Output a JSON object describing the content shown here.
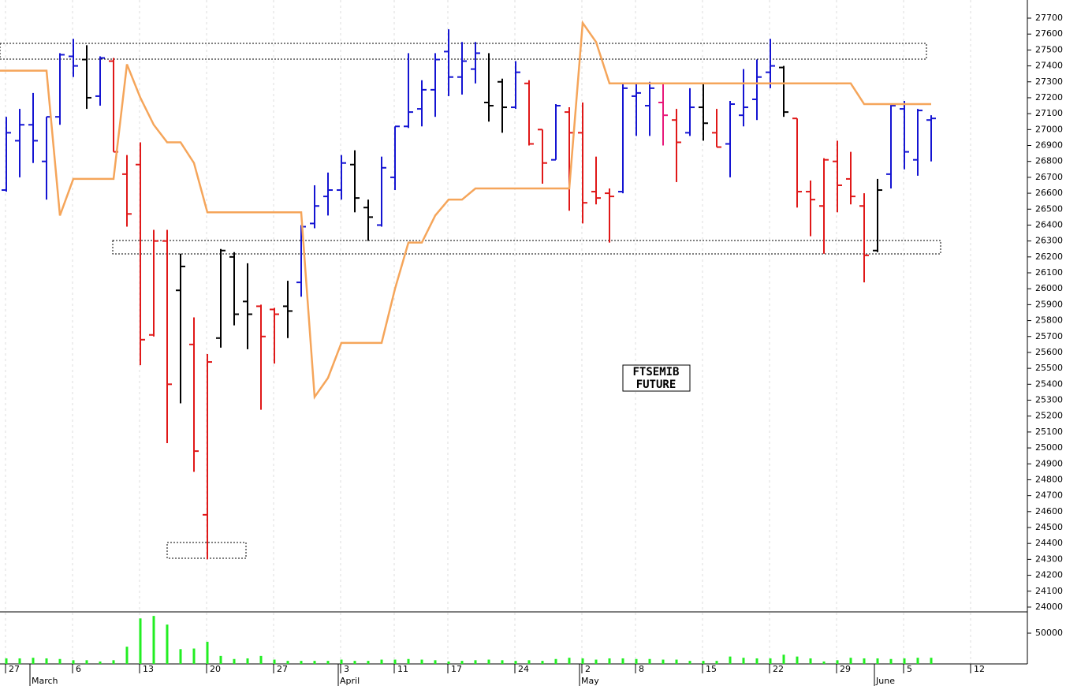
{
  "chart_data": {
    "type": "ohlc",
    "categories": [
      "27",
      null,
      null,
      null,
      null,
      "6",
      null,
      null,
      null,
      null,
      "13",
      null,
      null,
      null,
      null,
      "20",
      null,
      null,
      null,
      null,
      "27",
      null,
      null,
      null,
      null,
      "3",
      null,
      null,
      null,
      "11",
      null,
      null,
      null,
      "17",
      null,
      null,
      null,
      null,
      "24",
      null,
      null,
      null,
      null,
      "2",
      null,
      null,
      null,
      "8",
      null,
      null,
      null,
      null,
      "15",
      null,
      null,
      null,
      null,
      "22",
      null,
      null,
      null,
      null,
      "29",
      null,
      null,
      null,
      null,
      "5",
      null,
      null,
      null,
      null,
      "12",
      null
    ],
    "months": [
      null,
      null,
      "March",
      null,
      null,
      null,
      null,
      null,
      null,
      null,
      null,
      null,
      null,
      null,
      null,
      null,
      null,
      null,
      null,
      null,
      null,
      null,
      null,
      null,
      null,
      "April",
      null,
      null,
      null,
      null,
      null,
      null,
      null,
      null,
      null,
      null,
      null,
      null,
      null,
      null,
      null,
      null,
      null,
      "May",
      null,
      null,
      null,
      null,
      null,
      null,
      null,
      null,
      null,
      null,
      null,
      null,
      null,
      null,
      null,
      null,
      null,
      null,
      null,
      null,
      null,
      "June",
      null,
      null,
      null,
      null,
      null,
      null,
      null,
      null
    ],
    "open": [
      26620,
      26930,
      27030,
      26800,
      27080,
      27460,
      27440,
      27210,
      27430,
      26720,
      26780,
      25710,
      26300,
      25990,
      25650,
      24580,
      25690,
      26200,
      25920,
      25890,
      25870,
      25890,
      26040,
      26410,
      26580,
      26620,
      26780,
      26510,
      26400,
      26700,
      27020,
      27130,
      27250,
      27490,
      27330,
      27380,
      27170,
      27300,
      27140,
      27290,
      27000,
      26810,
      27110,
      26980,
      26610,
      26600,
      26610,
      27210,
      27150,
      27170,
      27060,
      26980,
      27140,
      26980,
      26910,
      27090,
      27190,
      27360,
      27390,
      27070,
      26610,
      26520,
      26800,
      26690,
      26520,
      26240,
      26720,
      27130,
      26810,
      27060,
      null,
      null,
      null,
      null
    ],
    "high": [
      27080,
      27130,
      27230,
      27080,
      27480,
      27570,
      27530,
      27460,
      27450,
      26840,
      26920,
      26370,
      26370,
      26220,
      25820,
      25590,
      26250,
      26230,
      26160,
      25900,
      25880,
      26050,
      26400,
      26650,
      26730,
      26840,
      26870,
      26560,
      26830,
      27020,
      27480,
      27310,
      27480,
      27630,
      27550,
      27550,
      27480,
      27320,
      27430,
      27310,
      27000,
      27160,
      27140,
      27170,
      26830,
      26630,
      27290,
      27290,
      27300,
      27290,
      27130,
      27260,
      27290,
      27130,
      27180,
      27380,
      27440,
      27570,
      27400,
      27070,
      26680,
      26820,
      26930,
      26860,
      26600,
      26690,
      27160,
      27180,
      27130,
      27090,
      null,
      null,
      null,
      null
    ],
    "low": [
      26610,
      26700,
      26790,
      26560,
      27030,
      27330,
      27130,
      27150,
      26860,
      26390,
      25520,
      25700,
      25030,
      25280,
      24850,
      24300,
      25630,
      25770,
      25620,
      25240,
      25530,
      25690,
      25950,
      26380,
      26460,
      26560,
      26480,
      26300,
      26390,
      26620,
      27010,
      27020,
      27080,
      27210,
      27220,
      27290,
      27050,
      26980,
      27130,
      26900,
      26660,
      26810,
      26490,
      26410,
      26530,
      26290,
      26600,
      26960,
      26960,
      26900,
      26670,
      26960,
      26930,
      26890,
      26700,
      27020,
      27060,
      27260,
      27080,
      26510,
      26330,
      26220,
      26480,
      26530,
      26040,
      26230,
      26630,
      26750,
      26710,
      26800,
      null,
      null,
      null,
      null
    ],
    "close": [
      26980,
      27030,
      26930,
      27080,
      27470,
      27400,
      27200,
      27450,
      26860,
      26470,
      25680,
      26300,
      25400,
      26140,
      24980,
      25540,
      26240,
      25840,
      25840,
      25700,
      25840,
      25860,
      26390,
      26520,
      26620,
      26790,
      26570,
      26450,
      26760,
      27020,
      27110,
      27250,
      27440,
      27330,
      27430,
      27480,
      27150,
      27140,
      27360,
      26910,
      26790,
      27150,
      26980,
      26540,
      26570,
      26580,
      27260,
      27230,
      27260,
      27090,
      26920,
      27140,
      27040,
      26890,
      27160,
      27140,
      27330,
      27400,
      27110,
      26610,
      26560,
      26810,
      26650,
      26580,
      26210,
      26620,
      27150,
      26860,
      27120,
      27070,
      null,
      null,
      null,
      null
    ],
    "bar_colors": [
      "#1414d2",
      "#1414d2",
      "#1414d2",
      "#1414d2",
      "#1414d2",
      "#1414d2",
      "#000000",
      "#1414d2",
      "#e01818",
      "#e01818",
      "#e01818",
      "#e01818",
      "#e01818",
      "#000000",
      "#e01818",
      "#e01818",
      "#000000",
      "#000000",
      "#000000",
      "#e01818",
      "#e01818",
      "#000000",
      "#1414d2",
      "#1414d2",
      "#1414d2",
      "#1414d2",
      "#000000",
      "#000000",
      "#1414d2",
      "#1414d2",
      "#1414d2",
      "#1414d2",
      "#1414d2",
      "#1414d2",
      "#1414d2",
      "#1414d2",
      "#000000",
      "#000000",
      "#1414d2",
      "#e01818",
      "#e01818",
      "#1414d2",
      "#e01818",
      "#e01818",
      "#e01818",
      "#e01818",
      "#1414d2",
      "#1414d2",
      "#1414d2",
      "#e8187a",
      "#e01818",
      "#1414d2",
      "#000000",
      "#e01818",
      "#1414d2",
      "#1414d2",
      "#1414d2",
      "#1414d2",
      "#000000",
      "#e01818",
      "#e01818",
      "#e01818",
      "#e01818",
      "#e01818",
      "#e01818",
      "#000000",
      "#1414d2",
      "#1414d2",
      "#1414d2",
      "#1414d2",
      null,
      null,
      null,
      null
    ],
    "ylim": [
      23970,
      27814
    ],
    "yticks": [
      24000,
      24100,
      24200,
      24300,
      24400,
      24500,
      24600,
      24700,
      24800,
      24900,
      25000,
      25100,
      25200,
      25300,
      25400,
      25500,
      25600,
      25700,
      25800,
      25900,
      26000,
      26100,
      26200,
      26300,
      26400,
      26500,
      26600,
      26700,
      26800,
      26900,
      27000,
      27100,
      27200,
      27300,
      27400,
      27500,
      27600,
      27700
    ],
    "line": {
      "color": "#f5a55a",
      "values": [
        27370,
        27370,
        27370,
        27370,
        26460,
        26690,
        26690,
        26690,
        26690,
        27410,
        27200,
        27030,
        26920,
        26920,
        26790,
        26480,
        26480,
        26480,
        26480,
        26480,
        26480,
        26480,
        26480,
        25320,
        25440,
        25660,
        25660,
        25660,
        25660,
        26000,
        26290,
        26290,
        26460,
        26560,
        26560,
        26630,
        26630,
        26630,
        26630,
        26630,
        26630,
        26630,
        26630,
        27670,
        27550,
        27290,
        27290,
        27290,
        27290,
        27290,
        27290,
        27290,
        27290,
        27290,
        27290,
        27290,
        27290,
        27290,
        27290,
        27290,
        27290,
        27290,
        27290,
        27290,
        27160,
        27160,
        27160,
        27160,
        27160,
        27160,
        null,
        null,
        null,
        null
      ]
    },
    "volume": {
      "color": "#22ee22",
      "ylim": [
        0,
        84600
      ],
      "yticks": [
        50000
      ],
      "values": [
        9000,
        9000,
        10000,
        9000,
        8000,
        6000,
        6000,
        4000,
        6000,
        28000,
        74000,
        78000,
        64000,
        24000,
        25000,
        36000,
        13000,
        8000,
        9000,
        13000,
        7000,
        5000,
        5000,
        5000,
        5000,
        7000,
        5000,
        5000,
        7000,
        7000,
        8000,
        7000,
        6000,
        4000,
        5000,
        6000,
        7000,
        6000,
        5000,
        6000,
        5000,
        8000,
        10000,
        9000,
        7000,
        9000,
        9000,
        8000,
        8000,
        7000,
        7000,
        5000,
        5000,
        5000,
        12000,
        10000,
        9000,
        9000,
        15000,
        12000,
        9000,
        4000,
        6000,
        10000,
        9000,
        9000,
        8000,
        9000,
        10000,
        10000,
        null,
        null,
        null,
        null
      ]
    },
    "annotation": [
      "FTSEMIB",
      "FUTURE"
    ],
    "grid": true
  }
}
